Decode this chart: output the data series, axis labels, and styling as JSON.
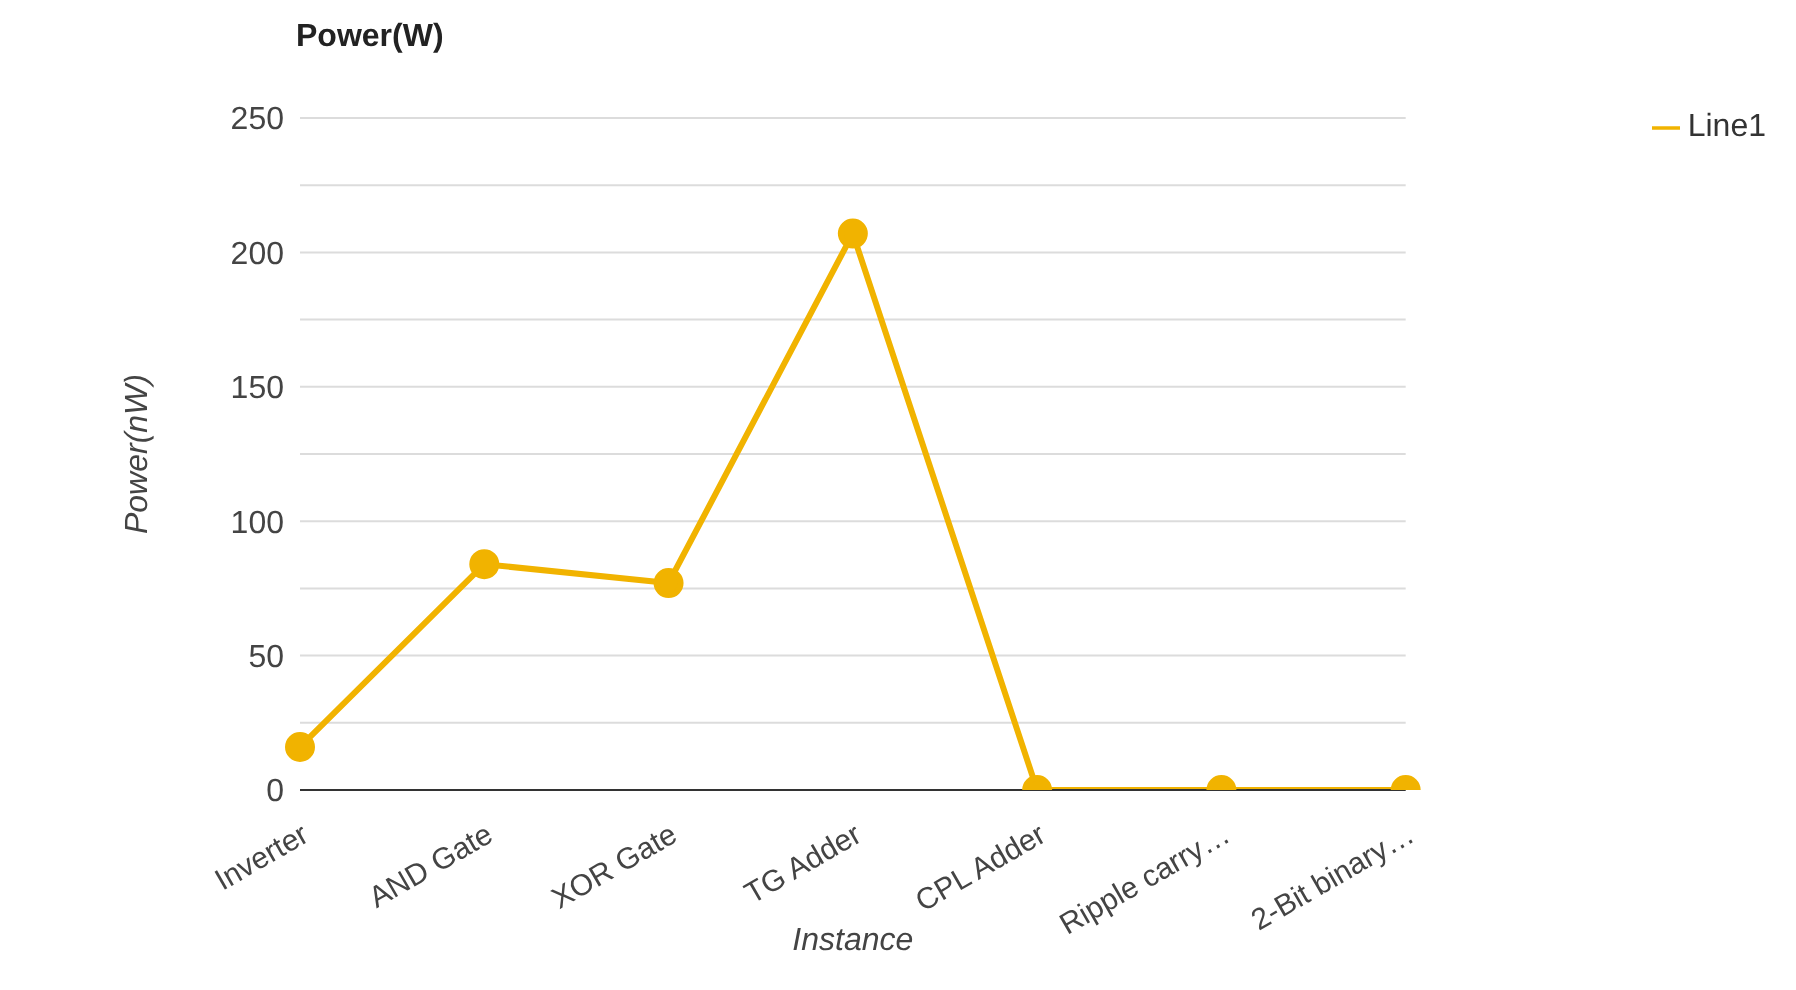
{
  "chart_data": {
    "type": "line",
    "title": "Power(W)",
    "xlabel": "Instance",
    "ylabel": "Power(nW)",
    "categories": [
      "Inverter",
      "AND Gate",
      "XOR Gate",
      "TG Adder",
      "CPL Adder",
      "Ripple carry…",
      "2-Bit binary…"
    ],
    "series": [
      {
        "name": "Line1",
        "color": "#f1b300",
        "values": [
          16,
          84,
          77,
          207,
          0,
          0,
          0
        ]
      }
    ],
    "ylim": [
      0,
      250
    ],
    "yticks": [
      0,
      {
        "value": 25,
        "label": null
      },
      50,
      {
        "value": 75,
        "label": null
      },
      100,
      {
        "value": 125,
        "label": null
      },
      150,
      {
        "value": 175,
        "label": null
      },
      200,
      {
        "value": 225,
        "label": null
      },
      250
    ],
    "grid": "y",
    "legend": "top right",
    "marker": "circle",
    "line_style": "solid"
  }
}
